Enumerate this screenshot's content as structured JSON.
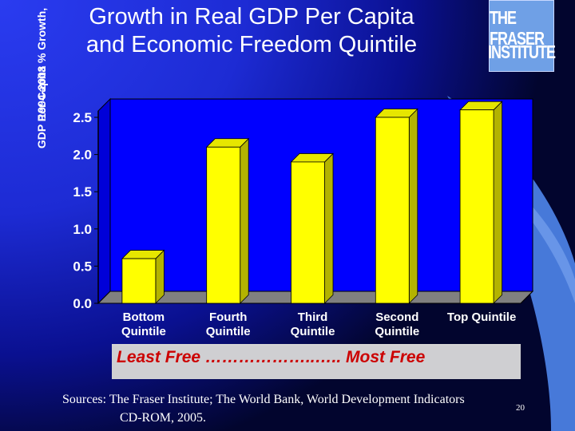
{
  "title_line1": "Growth in Real GDP Per Capita",
  "title_line2": "and Economic Freedom Quintile",
  "logo_line1": "THE FRASER",
  "logo_line2": "INSTITUTE",
  "least_most_label": "Least Free ………………..….. Most Free",
  "sources_line1": "Sources: The Fraser Institute; The World Bank, World Development Indicators",
  "sources_line2": "CD-ROM, 2005.",
  "slide_number": "20",
  "colors": {
    "bar": "#ffff00",
    "bar_edge": "#b3b300",
    "plot_bg": "#0000ff",
    "floor": "#808080",
    "title": "#ffffff",
    "accent_red": "#cc0000"
  },
  "chart_data": {
    "type": "bar",
    "categories": [
      [
        "Bottom",
        "Quintile"
      ],
      [
        "Fourth",
        "Quintile"
      ],
      [
        "Third",
        "Quintile"
      ],
      [
        "Second",
        "Quintile"
      ],
      [
        "Top Quintile"
      ]
    ],
    "values": [
      0.6,
      2.1,
      1.9,
      2.5,
      2.6
    ],
    "ylabel_line1": "GDP Per Capita % Growth,",
    "ylabel_line2": "1994-2003",
    "ylim": [
      0,
      2.5
    ],
    "ytick_labels": [
      "0.0",
      "0.5",
      "1.0",
      "1.5",
      "2.0",
      "2.5"
    ],
    "grid": false,
    "legend": "none"
  }
}
